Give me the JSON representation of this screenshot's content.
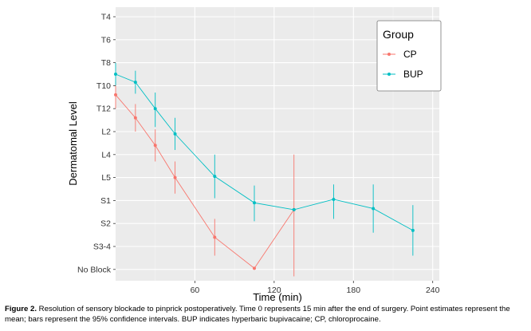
{
  "chart_data": {
    "type": "line",
    "title": "",
    "xlabel": "Time (min)",
    "ylabel": "Dermatomal Level",
    "y_categories": [
      "T4",
      "T6",
      "T8",
      "T10",
      "T12",
      "L2",
      "L4",
      "L5",
      "S1",
      "S2",
      "S3-4",
      "No Block"
    ],
    "x_ticks": [
      60,
      120,
      180,
      240
    ],
    "xlim": [
      0,
      245
    ],
    "grid": true,
    "legend": {
      "title": "Group",
      "placement": "top-right"
    },
    "series": [
      {
        "name": "CP",
        "color": "#F8766D",
        "points": [
          {
            "x": 0,
            "y": 3.4,
            "lo": 2.8,
            "hi": 4.0
          },
          {
            "x": 15,
            "y": 4.4,
            "lo": 3.8,
            "hi": 5.0
          },
          {
            "x": 30,
            "y": 5.6,
            "lo": 4.9,
            "hi": 6.3
          },
          {
            "x": 45,
            "y": 7.0,
            "lo": 6.3,
            "hi": 7.7
          },
          {
            "x": 75,
            "y": 9.6,
            "lo": 8.8,
            "hi": 10.4
          },
          {
            "x": 105,
            "y": 10.95,
            "lo": 10.95,
            "hi": 10.95
          },
          {
            "x": 135,
            "y": 8.4,
            "lo": 6.0,
            "hi": 11.3
          }
        ]
      },
      {
        "name": "BUP",
        "color": "#00BFC4",
        "points": [
          {
            "x": 0,
            "y": 2.5,
            "lo": 2.0,
            "hi": 3.0
          },
          {
            "x": 15,
            "y": 2.85,
            "lo": 2.35,
            "hi": 3.35
          },
          {
            "x": 30,
            "y": 4.0,
            "lo": 3.3,
            "hi": 4.8
          },
          {
            "x": 45,
            "y": 5.1,
            "lo": 4.4,
            "hi": 5.8
          },
          {
            "x": 75,
            "y": 6.95,
            "lo": 6.0,
            "hi": 7.9
          },
          {
            "x": 105,
            "y": 8.1,
            "lo": 7.35,
            "hi": 8.9
          },
          {
            "x": 135,
            "y": 8.4,
            "lo": 8.4,
            "hi": 8.4
          },
          {
            "x": 165,
            "y": 7.95,
            "lo": 7.3,
            "hi": 8.8
          },
          {
            "x": 195,
            "y": 8.35,
            "lo": 7.3,
            "hi": 9.4
          },
          {
            "x": 225,
            "y": 9.3,
            "lo": 8.2,
            "hi": 10.4
          }
        ]
      }
    ]
  },
  "caption": {
    "label": "Figure 2.",
    "text": " Resolution of sensory blockade to pinprick postoperatively. Time 0 represents 15 min after the end of surgery. Point estimates represent the mean; bars represent the 95% confidence intervals. BUP indicates hyperbaric bupivacaine; CP, chloroprocaine."
  }
}
